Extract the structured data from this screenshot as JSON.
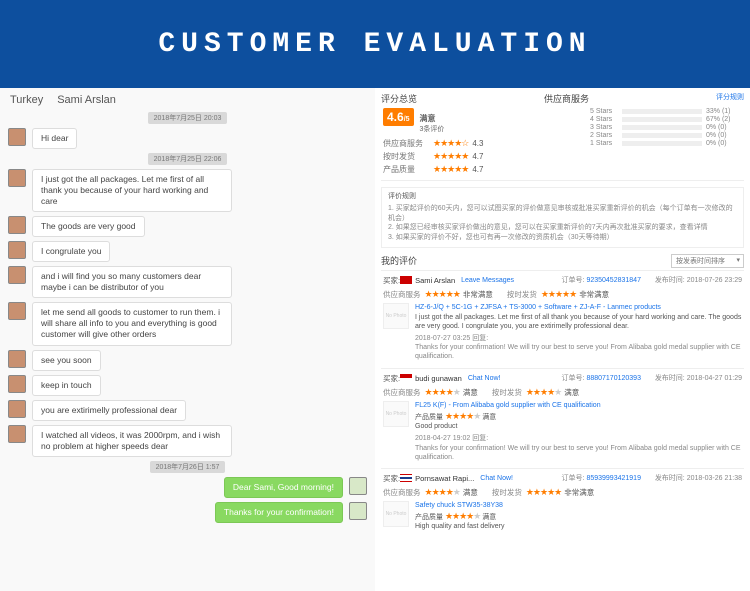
{
  "banner": {
    "title": "CUSTOMER  EVALUATION"
  },
  "chat": {
    "country": "Turkey",
    "name": "Sami Arslan",
    "dates": {
      "d1": "2018年7月25日 20:03",
      "d2": "2018年7月25日 22:06",
      "d3": "2018年7月26日 1:57"
    },
    "msgs": {
      "m1": "Hi dear",
      "m2": "I just got the all packages. Let me first of all thank you because of your hard working and care",
      "m3": "The goods are very good",
      "m4": "I congrulate you",
      "m5": "and i will find you so many customers dear maybe i can be distributor of you",
      "m6": "let me send all goods to customer to run them. i will share all info to you and everything is good customer will give other orders",
      "m7": "see you soon",
      "m8": "keep in touch",
      "m9": "you are extirimelly professional dear",
      "m10": "I watched all videos, it was 2000rpm, and i wish no problem at higher speeds dear",
      "r1": "Dear Sami, Good morning!",
      "r2": "Thanks for your confirmation!"
    }
  },
  "summary": {
    "title": "评分总览",
    "score": "4.6",
    "outof": "/5",
    "satisfied": "满意",
    "count": "3条评价",
    "svc_title": "供应商服务",
    "link": "评分规则",
    "dist": [
      {
        "label": "5 Stars",
        "pct": 33,
        "count": "33% (1)"
      },
      {
        "label": "4 Stars",
        "pct": 67,
        "count": "67% (2)"
      },
      {
        "label": "3 Stars",
        "pct": 0,
        "count": "0% (0)"
      },
      {
        "label": "2 Stars",
        "pct": 0,
        "count": "0% (0)"
      },
      {
        "label": "1 Stars",
        "pct": 0,
        "count": "0% (0)"
      }
    ],
    "ratings": {
      "r1": {
        "lbl": "供应商服务",
        "stars": "★★★★☆",
        "val": "4.3"
      },
      "r2": {
        "lbl": "按时发货",
        "stars": "★★★★★",
        "val": "4.7"
      },
      "r3": {
        "lbl": "产品质量",
        "stars": "★★★★★",
        "val": "4.7"
      }
    }
  },
  "rules": {
    "title": "评价规则",
    "l1": "1. 买家起评价的60天内，您可以试图买家的评价做意见审核或批准买家重新评价的机会（每个订单有一次修改的机会）",
    "l2": "2. 如果您已经审核买家评价做出的意见，您可以在买家重新评价的7天内再次批准买家的要求，查看详情",
    "l3": "3. 如果买家的评价不好，您也可有再一次修改的资质机会（30天等待期）",
    "link": "查看详情"
  },
  "myreviews": {
    "title": "我的评价",
    "dropdown": "按发表时间排序"
  },
  "labels": {
    "buyer": "买家:",
    "order": "订单号:",
    "time": "发布时间:",
    "svc": "供应商服务",
    "ship": "按时发货",
    "quality": "产品质量",
    "ok": "满意",
    "very": "非常满意",
    "leave": "Leave Messages",
    "chatnow": "Chat Now!",
    "nophoto": "No Photo"
  },
  "rev1": {
    "name": "Sami Arslan",
    "order": "92350452831847",
    "time": "2018-07-26 23:29",
    "prod": "HZ-6-J/Q + 5C-1G + ZJFSA + TS-3000 + Software + ZJ-A-F - Lanmec products",
    "comment": "I just got the all packages. Let me first of all thank you because of your hard working and care. The goods are very good. I congrulate you, you are extirimelly professional dear.",
    "reply_date": "2018-07-27 03:25 回复:",
    "reply": "Thanks for your confirmation! We will try our best to serve you! From Alibaba gold medal supplier with CE qualification."
  },
  "rev2": {
    "name": "budi gunawan",
    "order": "88807170120393",
    "time": "2018-04-27 01:29",
    "prod": "FL25 K(F) - From Alibaba gold supplier with CE qualification",
    "quality_lbl": "产品质量",
    "comment": "Good product",
    "reply_date": "2018-04-27 19:02 回复:",
    "reply": "Thanks for your confirmation! We will try our best to serve you! From Alibaba gold medal supplier with CE qualification."
  },
  "rev3": {
    "name": "Pornsawat Rapi...",
    "order": "85939993421919",
    "time": "2018-03-26 21:38",
    "prod": "Safety chuck STW35-38Y38",
    "comment": "High quality and fast delivery"
  }
}
